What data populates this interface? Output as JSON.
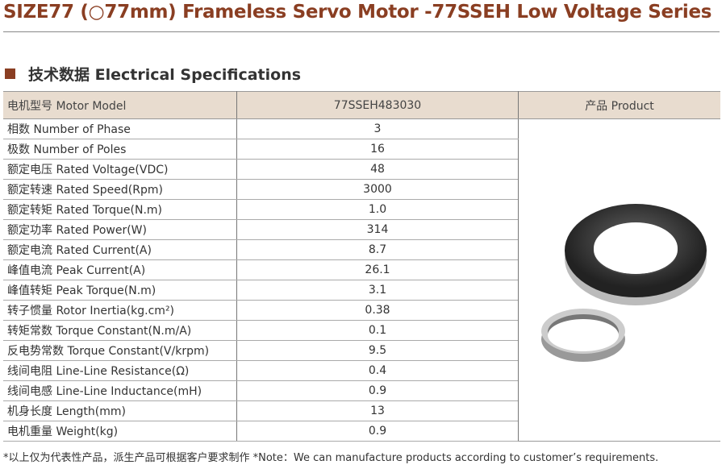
{
  "title": "SIZE77 (○77mm) Frameless Servo Motor -77SSEH Low Voltage Series",
  "section": "技术数据 Electrical Specifications",
  "table": {
    "header": {
      "label": "电机型号 Motor Model",
      "value": "77SSEH483030",
      "product": "产品 Product"
    },
    "rows": [
      {
        "label": "相数 Number of Phase",
        "value": "3"
      },
      {
        "label": "极数 Number of Poles",
        "value": "16"
      },
      {
        "label": "额定电压 Rated Voltage(VDC)",
        "value": "48"
      },
      {
        "label": "额定转速 Rated Speed(Rpm)",
        "value": "3000"
      },
      {
        "label": "额定转矩 Rated Torque(N.m)",
        "value": "1.0"
      },
      {
        "label": "额定功率 Rated Power(W)",
        "value": "314"
      },
      {
        "label": "额定电流 Rated Current(A)",
        "value": "8.7"
      },
      {
        "label": "峰值电流 Peak Current(A)",
        "value": "26.1"
      },
      {
        "label": "峰值转矩 Peak Torque(N.m)",
        "value": "3.1"
      },
      {
        "label": "转子惯量 Rotor Inertia(kg.cm²)",
        "value": "0.38"
      },
      {
        "label": "转矩常数 Torque Constant(N.m/A)",
        "value": "0.1"
      },
      {
        "label": "反电势常数 Torque Constant(V/krpm)",
        "value": "9.5"
      },
      {
        "label": "线间电阻 Line-Line Resistance(Ω)",
        "value": "0.4"
      },
      {
        "label": "线间电感 Line-Line Inductance(mH)",
        "value": "0.9"
      },
      {
        "label": "机身长度 Length(mm)",
        "value": "13"
      },
      {
        "label": "电机重量 Weight(kg)",
        "value": "0.9"
      }
    ]
  },
  "footnote": "*以上仅为代表性产品，派生产品可根据客户要求制作   *Note：We can manufacture products according to customer’s requirements.",
  "colors": {
    "accent": "#8a3e22",
    "header_bg": "#e8dccf"
  }
}
